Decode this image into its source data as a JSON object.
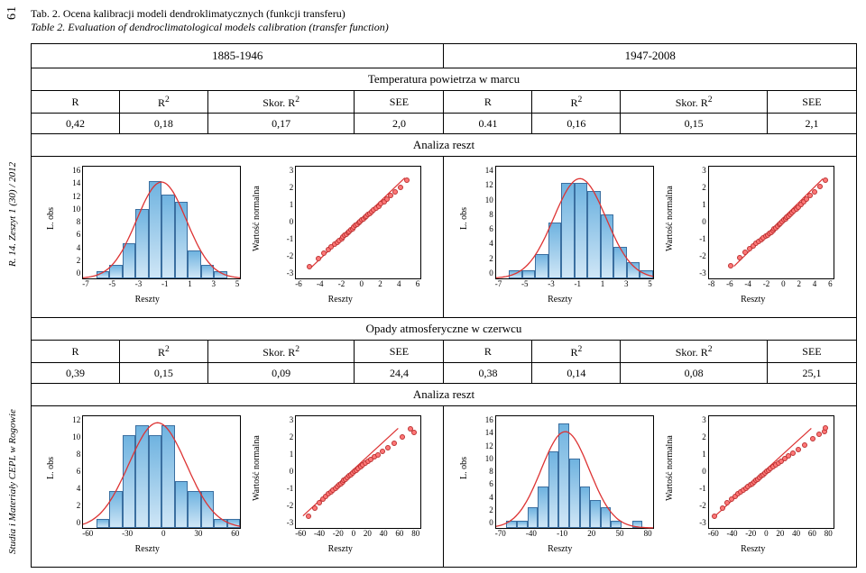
{
  "side": {
    "journal": "Studia i Materiały CEPL w Rogowie",
    "issue": "R. 14. Zeszyt 1 (30) / 2012",
    "page": "61"
  },
  "caption": {
    "line1": "Tab. 2. Ocena kalibracji modeli dendroklimatycznych (funkcji transferu)",
    "line2": "Table 2. Evaluation of dendroclimatological models calibration (transfer function)"
  },
  "periods": {
    "a": "1885-1946",
    "b": "1947-2008"
  },
  "sections": {
    "temp": "Temperatura powietrza w marcu",
    "rain": "Opady atmosferyczne w czerwcu",
    "resid": "Analiza reszt"
  },
  "cols": {
    "R": "R",
    "R2": "R",
    "SkorR2": "Skor. R",
    "SEE": "SEE",
    "sup2": "2"
  },
  "vals": {
    "temp": {
      "a": [
        "0,42",
        "0,18",
        "0,17",
        "2,0"
      ],
      "b": [
        "0.41",
        "0,16",
        "0,15",
        "2,1"
      ]
    },
    "rain": {
      "a": [
        "0,39",
        "0,15",
        "0,09",
        "24,4"
      ],
      "b": [
        "0,38",
        "0,14",
        "0,08",
        "25,1"
      ]
    }
  },
  "hist_ylabel": "L. obs",
  "qq_ylabel": "Wartość normalna",
  "xlabel": "Reszty",
  "style": {
    "bar_fill_top": "#6fb3e0",
    "bar_fill_bot": "#cfe6f6",
    "bar_stroke": "#3b6fa0",
    "curve_color": "#d33",
    "qq_line_color": "#d33",
    "pt_fill": "#f77",
    "pt_stroke": "#b33",
    "axis_color": "#000",
    "bg": "#ffffff",
    "tick_fontsize": 9,
    "label_fontsize": 10
  },
  "plots": {
    "temp_a_hist": {
      "xlim": [
        -7,
        5
      ],
      "xticks": [
        -7,
        -5,
        -3,
        -1,
        1,
        3,
        5
      ],
      "ylim": [
        0,
        16
      ],
      "yticks": [
        0,
        2,
        4,
        6,
        8,
        10,
        12,
        14,
        16
      ],
      "bars": [
        {
          "x0": -6,
          "x1": -5,
          "y": 1
        },
        {
          "x0": -5,
          "x1": -4,
          "y": 2
        },
        {
          "x0": -4,
          "x1": -3,
          "y": 5
        },
        {
          "x0": -3,
          "x1": -2,
          "y": 10
        },
        {
          "x0": -2,
          "x1": -1,
          "y": 14
        },
        {
          "x0": -1,
          "x1": 0,
          "y": 12
        },
        {
          "x0": 0,
          "x1": 1,
          "y": 11
        },
        {
          "x0": 1,
          "x1": 2,
          "y": 4
        },
        {
          "x0": 2,
          "x1": 3,
          "y": 2
        },
        {
          "x0": 3,
          "x1": 4,
          "y": 1
        }
      ],
      "curve": {
        "mu": -1.0,
        "sigma": 1.9,
        "peak": 13.8
      }
    },
    "temp_a_qq": {
      "xlim": [
        -6,
        6
      ],
      "xticks": [
        -6,
        -4,
        -2,
        0,
        2,
        4,
        6
      ],
      "ylim": [
        -3,
        3
      ],
      "yticks": [
        -3,
        -2,
        -1,
        0,
        1,
        2,
        3
      ],
      "line": {
        "x0": -4.5,
        "y0": -2.4,
        "x1": 4.5,
        "y1": 2.4
      },
      "points": [
        [
          -4.8,
          -2.3
        ],
        [
          -3.9,
          -1.9
        ],
        [
          -3.4,
          -1.6
        ],
        [
          -3.0,
          -1.4
        ],
        [
          -2.7,
          -1.25
        ],
        [
          -2.4,
          -1.1
        ],
        [
          -2.1,
          -1.0
        ],
        [
          -1.9,
          -0.9
        ],
        [
          -1.7,
          -0.8
        ],
        [
          -1.55,
          -0.72
        ],
        [
          -1.4,
          -0.65
        ],
        [
          -1.25,
          -0.58
        ],
        [
          -1.1,
          -0.5
        ],
        [
          -0.95,
          -0.42
        ],
        [
          -0.8,
          -0.35
        ],
        [
          -0.65,
          -0.28
        ],
        [
          -0.5,
          -0.2
        ],
        [
          -0.35,
          -0.12
        ],
        [
          -0.2,
          -0.05
        ],
        [
          -0.05,
          0.03
        ],
        [
          0.1,
          0.1
        ],
        [
          0.25,
          0.18
        ],
        [
          0.4,
          0.25
        ],
        [
          0.55,
          0.32
        ],
        [
          0.7,
          0.4
        ],
        [
          0.85,
          0.48
        ],
        [
          1.0,
          0.55
        ],
        [
          1.2,
          0.63
        ],
        [
          1.4,
          0.72
        ],
        [
          1.6,
          0.82
        ],
        [
          1.85,
          0.93
        ],
        [
          2.1,
          1.05
        ],
        [
          2.4,
          1.18
        ],
        [
          2.7,
          1.33
        ],
        [
          3.05,
          1.5
        ],
        [
          3.5,
          1.7
        ],
        [
          4.0,
          1.95
        ],
        [
          4.6,
          2.3
        ]
      ]
    },
    "temp_b_hist": {
      "xlim": [
        -7,
        5
      ],
      "xticks": [
        -7,
        -5,
        -3,
        -1,
        1,
        3,
        5
      ],
      "ylim": [
        0,
        14
      ],
      "yticks": [
        0,
        2,
        4,
        6,
        8,
        10,
        12,
        14
      ],
      "bars": [
        {
          "x0": -6,
          "x1": -5,
          "y": 1
        },
        {
          "x0": -5,
          "x1": -4,
          "y": 1
        },
        {
          "x0": -4,
          "x1": -3,
          "y": 3
        },
        {
          "x0": -3,
          "x1": -2,
          "y": 7
        },
        {
          "x0": -2,
          "x1": -1,
          "y": 12
        },
        {
          "x0": -1,
          "x1": 0,
          "y": 12
        },
        {
          "x0": 0,
          "x1": 1,
          "y": 11
        },
        {
          "x0": 1,
          "x1": 2,
          "y": 8
        },
        {
          "x0": 2,
          "x1": 3,
          "y": 4
        },
        {
          "x0": 3,
          "x1": 4,
          "y": 2
        },
        {
          "x0": 4,
          "x1": 5,
          "y": 1
        }
      ],
      "curve": {
        "mu": -0.6,
        "sigma": 2.0,
        "peak": 12.5
      }
    },
    "temp_b_qq": {
      "xlim": [
        -8,
        6
      ],
      "xticks": [
        -8,
        -6,
        -4,
        -2,
        0,
        2,
        4,
        6
      ],
      "ylim": [
        -3,
        3
      ],
      "yticks": [
        -3,
        -2,
        -1,
        0,
        1,
        2,
        3
      ],
      "line": {
        "x0": -5.2,
        "y0": -2.35,
        "x1": 4.8,
        "y1": 2.35
      },
      "points": [
        [
          -5.6,
          -2.25
        ],
        [
          -4.6,
          -1.85
        ],
        [
          -4.0,
          -1.55
        ],
        [
          -3.5,
          -1.35
        ],
        [
          -3.1,
          -1.2
        ],
        [
          -2.75,
          -1.08
        ],
        [
          -2.45,
          -0.97
        ],
        [
          -2.2,
          -0.87
        ],
        [
          -1.95,
          -0.78
        ],
        [
          -1.72,
          -0.7
        ],
        [
          -1.5,
          -0.62
        ],
        [
          -1.3,
          -0.54
        ],
        [
          -1.1,
          -0.46
        ],
        [
          -0.92,
          -0.38
        ],
        [
          -0.74,
          -0.3
        ],
        [
          -0.56,
          -0.22
        ],
        [
          -0.38,
          -0.14
        ],
        [
          -0.2,
          -0.07
        ],
        [
          -0.02,
          0.01
        ],
        [
          0.16,
          0.09
        ],
        [
          0.34,
          0.17
        ],
        [
          0.52,
          0.25
        ],
        [
          0.7,
          0.33
        ],
        [
          0.88,
          0.41
        ],
        [
          1.08,
          0.5
        ],
        [
          1.28,
          0.59
        ],
        [
          1.5,
          0.68
        ],
        [
          1.73,
          0.78
        ],
        [
          1.98,
          0.89
        ],
        [
          2.25,
          1.01
        ],
        [
          2.55,
          1.14
        ],
        [
          2.9,
          1.3
        ],
        [
          3.3,
          1.48
        ],
        [
          3.8,
          1.7
        ],
        [
          4.4,
          2.0
        ],
        [
          5.0,
          2.3
        ]
      ]
    },
    "rain_a_hist": {
      "xlim": [
        -60,
        60
      ],
      "xticks": [
        -60,
        -30,
        0,
        30,
        60
      ],
      "ylim": [
        0,
        12
      ],
      "yticks": [
        0,
        2,
        4,
        6,
        8,
        10,
        12
      ],
      "bars": [
        {
          "x0": -50,
          "x1": -40,
          "y": 1
        },
        {
          "x0": -40,
          "x1": -30,
          "y": 4
        },
        {
          "x0": -30,
          "x1": -20,
          "y": 10
        },
        {
          "x0": -20,
          "x1": -10,
          "y": 11
        },
        {
          "x0": -10,
          "x1": 0,
          "y": 10
        },
        {
          "x0": 0,
          "x1": 10,
          "y": 11
        },
        {
          "x0": 10,
          "x1": 20,
          "y": 5
        },
        {
          "x0": 20,
          "x1": 30,
          "y": 4
        },
        {
          "x0": 30,
          "x1": 40,
          "y": 4
        },
        {
          "x0": 40,
          "x1": 50,
          "y": 1
        },
        {
          "x0": 50,
          "x1": 60,
          "y": 1
        }
      ],
      "curve": {
        "mu": -3,
        "sigma": 22,
        "peak": 11.3
      }
    },
    "rain_a_qq": {
      "xlim": [
        -60,
        80
      ],
      "xticks": [
        -60,
        -40,
        -20,
        0,
        20,
        40,
        60,
        80
      ],
      "ylim": [
        -3,
        3
      ],
      "yticks": [
        -3,
        -2,
        -1,
        0,
        1,
        2,
        3
      ],
      "line": {
        "x0": -52,
        "y0": -2.35,
        "x1": 55,
        "y1": 2.35
      },
      "points": [
        [
          -47,
          -2.3
        ],
        [
          -40,
          -1.9
        ],
        [
          -35,
          -1.6
        ],
        [
          -31,
          -1.4
        ],
        [
          -28,
          -1.25
        ],
        [
          -25,
          -1.12
        ],
        [
          -22,
          -1.0
        ],
        [
          -19.5,
          -0.9
        ],
        [
          -17,
          -0.8
        ],
        [
          -15,
          -0.72
        ],
        [
          -13,
          -0.64
        ],
        [
          -11,
          -0.56
        ],
        [
          -9,
          -0.48
        ],
        [
          -7,
          -0.4
        ],
        [
          -5,
          -0.32
        ],
        [
          -3,
          -0.24
        ],
        [
          -1,
          -0.16
        ],
        [
          1,
          -0.08
        ],
        [
          3,
          0.0
        ],
        [
          5,
          0.08
        ],
        [
          7,
          0.16
        ],
        [
          9,
          0.24
        ],
        [
          11.5,
          0.33
        ],
        [
          14,
          0.42
        ],
        [
          16.5,
          0.51
        ],
        [
          19.5,
          0.61
        ],
        [
          23,
          0.72
        ],
        [
          27,
          0.85
        ],
        [
          31,
          0.99
        ],
        [
          36,
          1.15
        ],
        [
          42,
          1.35
        ],
        [
          49,
          1.6
        ],
        [
          58,
          1.95
        ],
        [
          68,
          2.35
        ],
        [
          72,
          2.2
        ]
      ]
    },
    "rain_b_hist": {
      "xlim": [
        -70,
        80
      ],
      "xticks": [
        -70,
        -40,
        -10,
        20,
        50,
        80
      ],
      "ylim": [
        0,
        16
      ],
      "yticks": [
        0,
        2,
        4,
        6,
        8,
        10,
        12,
        14,
        16
      ],
      "bars": [
        {
          "x0": -60,
          "x1": -50,
          "y": 1
        },
        {
          "x0": -50,
          "x1": -40,
          "y": 1
        },
        {
          "x0": -40,
          "x1": -30,
          "y": 3
        },
        {
          "x0": -30,
          "x1": -20,
          "y": 6
        },
        {
          "x0": -20,
          "x1": -10,
          "y": 11
        },
        {
          "x0": -10,
          "x1": 0,
          "y": 15
        },
        {
          "x0": 0,
          "x1": 10,
          "y": 10
        },
        {
          "x0": 10,
          "x1": 20,
          "y": 6
        },
        {
          "x0": 20,
          "x1": 30,
          "y": 4
        },
        {
          "x0": 30,
          "x1": 40,
          "y": 3
        },
        {
          "x0": 40,
          "x1": 50,
          "y": 1
        },
        {
          "x0": 60,
          "x1": 70,
          "y": 1
        }
      ],
      "curve": {
        "mu": -4,
        "sigma": 23,
        "peak": 13.8
      }
    },
    "rain_b_qq": {
      "xlim": [
        -60,
        80
      ],
      "xticks": [
        -60,
        -40,
        -20,
        0,
        20,
        40,
        60,
        80
      ],
      "ylim": [
        -3,
        3
      ],
      "yticks": [
        -3,
        -2,
        -1,
        0,
        1,
        2,
        3
      ],
      "line": {
        "x0": -53,
        "y0": -2.35,
        "x1": 55,
        "y1": 2.35
      },
      "points": [
        [
          -55,
          -2.3
        ],
        [
          -46,
          -1.9
        ],
        [
          -40,
          -1.6
        ],
        [
          -35,
          -1.4
        ],
        [
          -31,
          -1.25
        ],
        [
          -28,
          -1.12
        ],
        [
          -25,
          -1.0
        ],
        [
          -22,
          -0.9
        ],
        [
          -19.5,
          -0.8
        ],
        [
          -17,
          -0.72
        ],
        [
          -14.5,
          -0.64
        ],
        [
          -12,
          -0.56
        ],
        [
          -10,
          -0.48
        ],
        [
          -8,
          -0.4
        ],
        [
          -6,
          -0.32
        ],
        [
          -4,
          -0.24
        ],
        [
          -2,
          -0.16
        ],
        [
          0,
          -0.08
        ],
        [
          2,
          0.0
        ],
        [
          4,
          0.08
        ],
        [
          6,
          0.16
        ],
        [
          8.5,
          0.25
        ],
        [
          11,
          0.34
        ],
        [
          14,
          0.44
        ],
        [
          17,
          0.54
        ],
        [
          20.5,
          0.65
        ],
        [
          24.5,
          0.77
        ],
        [
          29,
          0.91
        ],
        [
          34,
          1.07
        ],
        [
          40,
          1.26
        ],
        [
          47,
          1.5
        ],
        [
          56,
          1.82
        ],
        [
          63,
          2.1
        ],
        [
          69,
          2.25
        ],
        [
          70,
          2.4
        ]
      ]
    }
  }
}
